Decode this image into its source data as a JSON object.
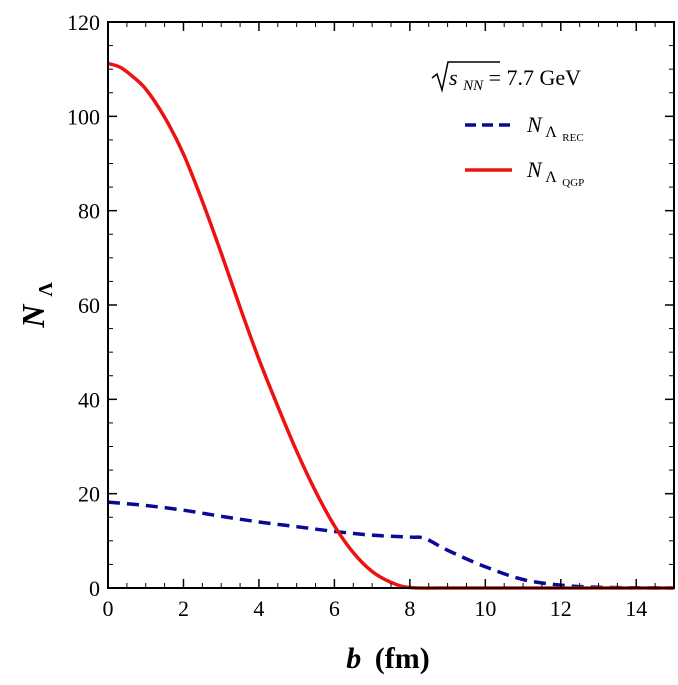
{
  "chart_data": {
    "type": "line",
    "title": "",
    "xlabel": {
      "var": "b",
      "unit": "(fm)"
    },
    "ylabel": {
      "var": "N",
      "sub": "Λ"
    },
    "xlim": [
      0,
      15
    ],
    "ylim": [
      0,
      120
    ],
    "xticks": [
      0,
      2,
      4,
      6,
      8,
      10,
      12,
      14
    ],
    "yticks": [
      0,
      20,
      40,
      60,
      80,
      100,
      120
    ],
    "xtick_labels": [
      "0",
      "2",
      "4",
      "6",
      "8",
      "10",
      "12",
      "14"
    ],
    "ytick_labels": [
      "0",
      "20",
      "40",
      "60",
      "80",
      "100",
      "120"
    ],
    "grid": false,
    "legend_position": "top-right",
    "annotation": {
      "sqrt_arg": "s",
      "sqrt_sub": "NN",
      "rest": " = 7.7 GeV"
    },
    "series": [
      {
        "name": "N_Λ_REC",
        "label_main": "N",
        "label_sub": "Λ",
        "label_subsub": "REC",
        "color": "#0a0a96",
        "dash": true,
        "x": [
          0,
          1,
          2,
          3,
          4,
          5,
          6,
          7,
          8,
          8.4,
          9,
          10,
          11,
          12,
          13,
          14,
          15
        ],
        "y": [
          18.2,
          17.5,
          16.5,
          15.2,
          14.0,
          13.0,
          12.0,
          11.2,
          10.8,
          10.5,
          8.0,
          4.5,
          1.8,
          0.6,
          0.15,
          0.05,
          0.0
        ]
      },
      {
        "name": "N_Λ_QGP",
        "label_main": "N",
        "label_sub": "Λ",
        "label_subsub": "QGP",
        "color": "#ee1111",
        "dash": false,
        "x": [
          0,
          0.3,
          0.6,
          1,
          1.5,
          2,
          2.5,
          3,
          3.5,
          4,
          4.5,
          5,
          5.5,
          6,
          6.5,
          7,
          7.5,
          8,
          9,
          10,
          12,
          15
        ],
        "y": [
          111.2,
          110.5,
          108.8,
          105.8,
          99.8,
          92.0,
          82.0,
          71.0,
          59.5,
          48.5,
          38.5,
          29.0,
          20.5,
          13.2,
          7.5,
          3.5,
          1.2,
          0.1,
          0.0,
          0.0,
          0.0,
          0.0
        ]
      }
    ]
  }
}
